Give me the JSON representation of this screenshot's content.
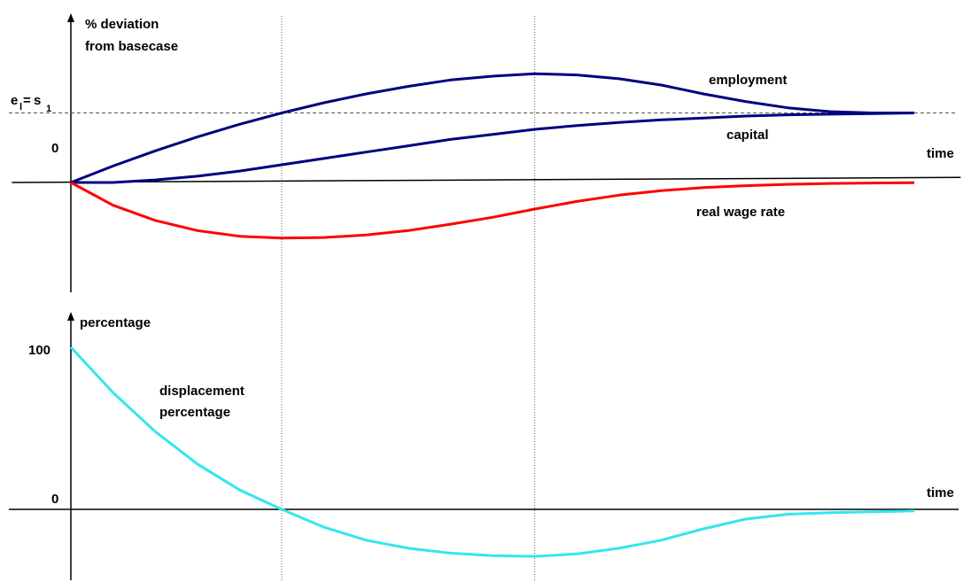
{
  "chart_data": [
    {
      "type": "line",
      "title": "",
      "ylabel_line1": "% deviation",
      "ylabel_line2": "from basecase",
      "xlabel": "time",
      "zero_label": "0",
      "steady_state_label": {
        "e": "e",
        "e_sub": "l",
        "eq": "=",
        "s": "s",
        "s_sub": "1"
      },
      "steady_state_level": 55,
      "x_range": [
        0,
        20
      ],
      "y_range": [
        -60,
        110
      ],
      "reference_times": [
        5,
        11
      ],
      "colors": {
        "employment": "#000080",
        "capital": "#000080",
        "real_wage_rate": "#ff0000",
        "baseline": "#000000"
      },
      "baseline": {
        "x": [
          -1.4,
          21.1
        ],
        "y": [
          0,
          4
        ]
      },
      "series": [
        {
          "name": "employment",
          "x": [
            0,
            1,
            2,
            3,
            4,
            5,
            6,
            7,
            8,
            9,
            10,
            11,
            12,
            13,
            14,
            15,
            16,
            17,
            18,
            19,
            20
          ],
          "y": [
            0,
            13,
            25,
            36,
            46,
            55,
            63,
            70,
            76,
            81,
            84,
            86,
            85,
            82,
            77,
            70,
            64,
            59,
            56,
            55,
            55
          ]
        },
        {
          "name": "capital",
          "x": [
            0,
            1,
            2,
            3,
            4,
            5,
            6,
            7,
            8,
            9,
            10,
            11,
            12,
            13,
            14,
            15,
            16,
            17,
            18,
            19,
            20
          ],
          "y": [
            0,
            0,
            2,
            5,
            9,
            14,
            19,
            24,
            29,
            34,
            38,
            42,
            45,
            47.5,
            49.5,
            51,
            52.5,
            53.5,
            54,
            54.5,
            55
          ]
        },
        {
          "name": "real wage rate",
          "x": [
            0,
            1,
            2,
            3,
            4,
            5,
            6,
            7,
            8,
            9,
            10,
            11,
            12,
            13,
            14,
            15,
            16,
            17,
            18,
            19,
            20
          ],
          "y": [
            0,
            -18,
            -30,
            -38,
            -42.5,
            -44,
            -43.5,
            -41.5,
            -38,
            -33,
            -27.5,
            -21,
            -15,
            -10,
            -6.5,
            -4,
            -2.5,
            -1.5,
            -0.8,
            -0.4,
            -0.2
          ]
        }
      ]
    },
    {
      "type": "line",
      "title": "",
      "ylabel": "percentage",
      "xlabel": "time",
      "ytick_100": "100",
      "ytick_0": "0",
      "x_range": [
        0,
        20
      ],
      "y_range": [
        -30,
        100
      ],
      "reference_times": [
        5,
        11
      ],
      "colors": {
        "displacement_percentage": "#33e6f0",
        "baseline": "#000000"
      },
      "series": [
        {
          "name_line1": "displacement",
          "name_line2": "percentage",
          "x": [
            0,
            1,
            2,
            3,
            4,
            5,
            6,
            7,
            8,
            9,
            10,
            11,
            12,
            13,
            14,
            15,
            16,
            17,
            18,
            19,
            20
          ],
          "y": [
            100,
            72,
            48,
            28,
            12,
            0,
            -11,
            -19,
            -24,
            -27,
            -28.5,
            -29,
            -27.5,
            -24,
            -19,
            -12,
            -6,
            -3,
            -2,
            -1.5,
            -1
          ]
        }
      ]
    }
  ]
}
